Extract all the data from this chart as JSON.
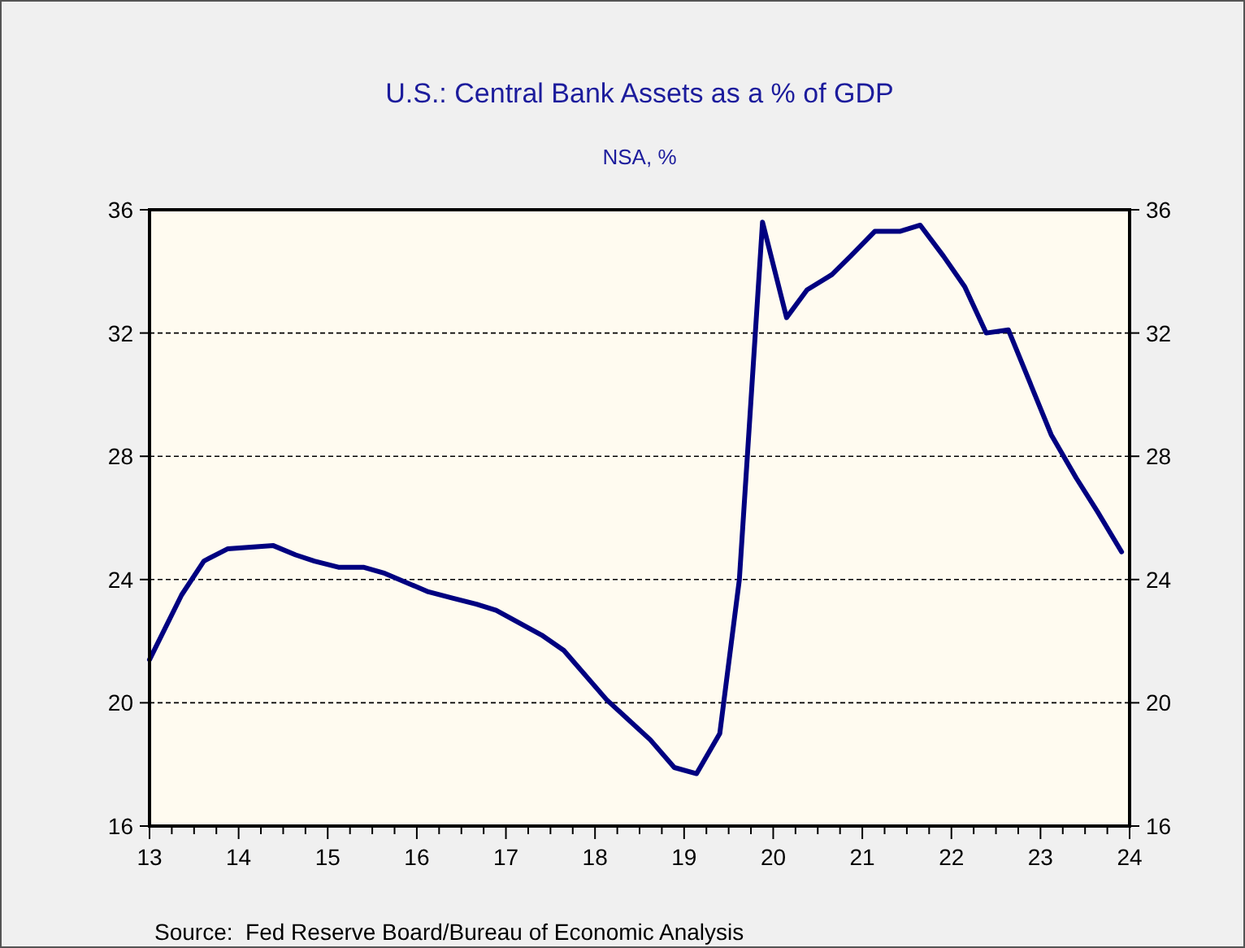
{
  "chart_data": {
    "type": "line",
    "title": "U.S.: Central Bank Assets as a % of GDP",
    "subtitle": "NSA, %",
    "annotations": [
      "Source:  Fed Reserve Board/Bureau of Economic Analysis"
    ],
    "series": [
      {
        "color": "#000080",
        "x": [
          13.0,
          13.36,
          13.61,
          13.88,
          14.39,
          14.64,
          14.85,
          15.12,
          15.4,
          15.64,
          16.13,
          16.4,
          16.67,
          16.89,
          17.4,
          17.65,
          18.13,
          18.62,
          18.89,
          19.14,
          19.4,
          19.62,
          19.88,
          20.15,
          20.38,
          20.66,
          20.87,
          21.14,
          21.42,
          21.65,
          21.91,
          22.15,
          22.39,
          22.64,
          22.88,
          23.12,
          23.4,
          23.64,
          23.91
        ],
        "values": [
          21.4,
          23.5,
          24.6,
          25.0,
          25.1,
          24.8,
          24.6,
          24.4,
          24.4,
          24.2,
          23.6,
          23.4,
          23.2,
          23.0,
          22.2,
          21.7,
          20.1,
          18.8,
          17.9,
          17.7,
          19.0,
          24.0,
          35.6,
          32.5,
          33.4,
          33.9,
          34.5,
          35.3,
          35.3,
          35.5,
          34.5,
          33.5,
          32.0,
          32.1,
          30.4,
          28.7,
          27.3,
          26.2,
          24.9
        ]
      }
    ],
    "xlim": [
      13,
      24
    ],
    "xticks": [
      13,
      14,
      15,
      16,
      17,
      18,
      19,
      20,
      21,
      22,
      23,
      24
    ],
    "ylim": [
      16,
      36
    ],
    "yticks": [
      16,
      20,
      24,
      28,
      32,
      36
    ],
    "y2lim": [
      16,
      36
    ],
    "y2ticks": [
      16,
      20,
      24,
      28,
      32,
      36
    ],
    "grid": "y",
    "line_style": "solid"
  }
}
